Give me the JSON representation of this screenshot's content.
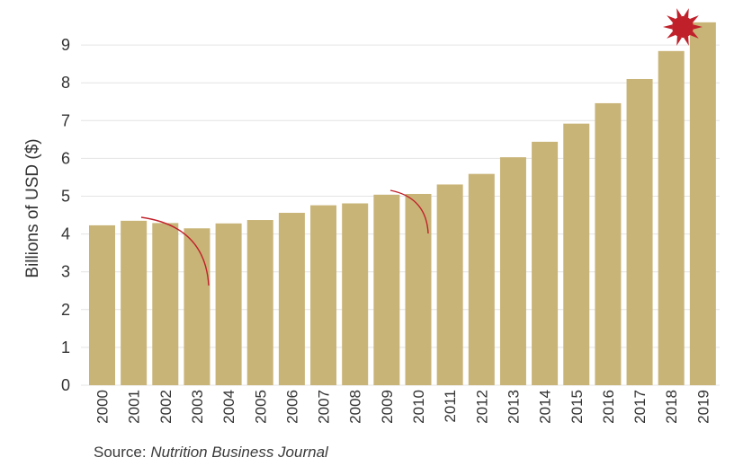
{
  "chart_data": {
    "type": "bar",
    "categories": [
      "2000",
      "2001",
      "2002",
      "2003",
      "2004",
      "2005",
      "2006",
      "2007",
      "2008",
      "2009",
      "2010",
      "2011",
      "2012",
      "2013",
      "2014",
      "2015",
      "2016",
      "2017",
      "2018",
      "2019"
    ],
    "values": [
      4.23,
      4.35,
      4.29,
      4.15,
      4.28,
      4.37,
      4.56,
      4.76,
      4.81,
      5.04,
      5.06,
      5.31,
      5.59,
      6.03,
      6.44,
      6.92,
      7.46,
      8.1,
      8.84,
      9.6
    ],
    "title": "",
    "xlabel": "",
    "ylabel": "Billions of USD ($)",
    "ylim": [
      0,
      9.65
    ],
    "yticks": [
      "0",
      "1",
      "2",
      "3",
      "4",
      "5",
      "6",
      "7",
      "8",
      "9"
    ],
    "grid": true,
    "bar_color": "#c9b478",
    "grid_color": "#e4e4e4",
    "annotation_color": "#c0202a",
    "annotation_icon": "sun-icon",
    "source_label": "Source: ",
    "source_name": "Nutrition Business Journal"
  }
}
